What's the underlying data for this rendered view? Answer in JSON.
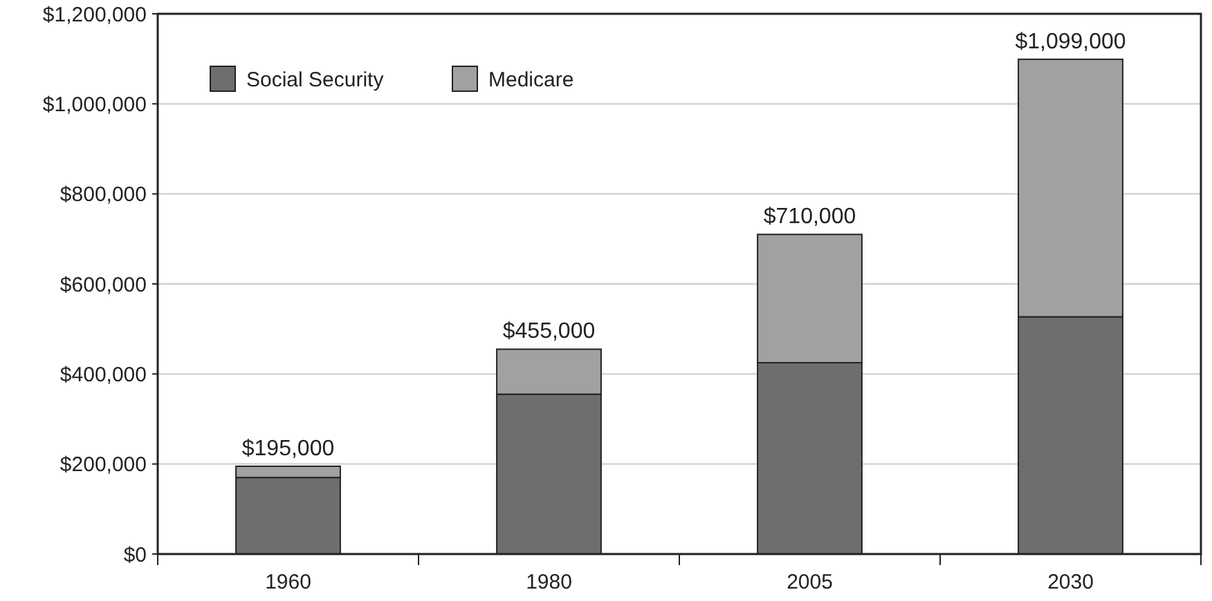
{
  "chart_data": {
    "type": "bar",
    "stacked": true,
    "categories": [
      "1960",
      "1980",
      "2005",
      "2030"
    ],
    "series": [
      {
        "name": "Social Security",
        "color": "#6d6e70",
        "values": [
          170000,
          355000,
          425000,
          527000
        ]
      },
      {
        "name": "Medicare",
        "color": "#a0a1a3",
        "values": [
          25000,
          100000,
          285000,
          572000
        ]
      }
    ],
    "totals": [
      "$195,000",
      "$455,000",
      "$710,000",
      "$1,099,000"
    ],
    "ylim": [
      0,
      1200000
    ],
    "yticks": [
      {
        "value": 0,
        "label": "$0"
      },
      {
        "value": 200000,
        "label": "$200,000"
      },
      {
        "value": 400000,
        "label": "$400,000"
      },
      {
        "value": 600000,
        "label": "$600,000"
      },
      {
        "value": 800000,
        "label": "$800,000"
      },
      {
        "value": 1000000,
        "label": "$1,000,000"
      },
      {
        "value": 1200000,
        "label": "$1,200,000"
      }
    ],
    "grid": "y",
    "legend": "top left"
  }
}
